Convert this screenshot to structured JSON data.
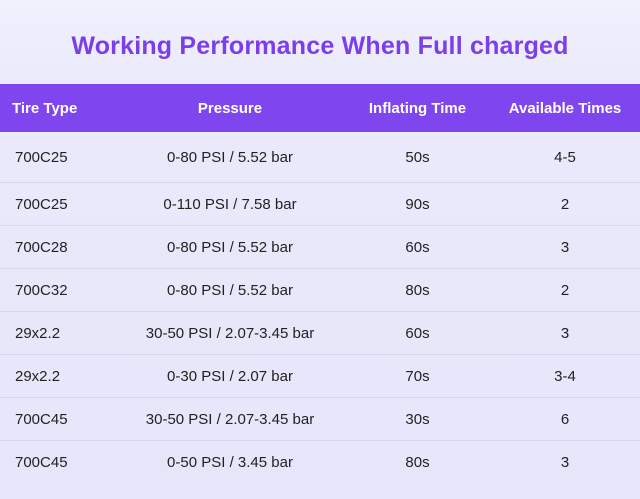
{
  "title": "Working Performance When Full charged",
  "table": {
    "columns": [
      "Tire Type",
      "Pressure",
      "Inflating Time",
      "Available Times"
    ],
    "rows": [
      [
        "700C25",
        "0-80 PSI / 5.52 bar",
        "50s",
        "4-5"
      ],
      [
        "700C25",
        "0-110 PSI / 7.58 bar",
        "90s",
        "2"
      ],
      [
        "700C28",
        "0-80 PSI / 5.52 bar",
        "60s",
        "3"
      ],
      [
        "700C32",
        "0-80 PSI / 5.52 bar",
        "80s",
        "2"
      ],
      [
        "29x2.2",
        "30-50 PSI / 2.07-3.45 bar",
        "60s",
        "3"
      ],
      [
        "29x2.2",
        "0-30 PSI / 2.07 bar",
        "70s",
        "3-4"
      ],
      [
        "700C45",
        "30-50 PSI / 2.07-3.45 bar",
        "30s",
        "6"
      ],
      [
        "700C45",
        "0-50 PSI / 3.45 bar",
        "80s",
        "3"
      ]
    ]
  },
  "colors": {
    "accent": "#7f45ee",
    "title": "#7a3fe8",
    "background": "#e9e8fb"
  }
}
